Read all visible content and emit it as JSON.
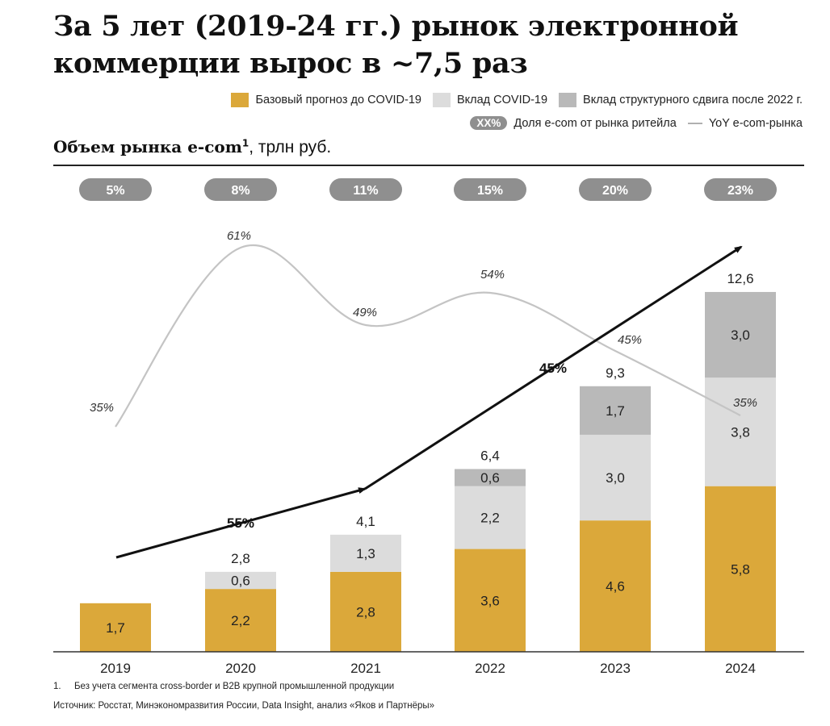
{
  "title": "За 5 лет (2019-24 гг.) рынок электронной коммерции вырос в ~7,5 раз",
  "subtitle": {
    "bold": "Объем рынка e-com",
    "sup": "1",
    "unit": ", трлн руб."
  },
  "legend": {
    "base": "Базовый прогноз до COVID-19",
    "covid": "Вклад COVID-19",
    "shift": "Вклад структурного сдвига после 2022 г.",
    "pill_sample": "XX%",
    "share": "Доля e-com от рынка ритейла",
    "yoy": "YoY e-com-рынка"
  },
  "colors": {
    "base": "#dba83a",
    "covid": "#dcdcdc",
    "shift": "#b9b9b9",
    "pill": "#8f8f8f",
    "yoy_line": "#c4c4c4",
    "trend": "#111111"
  },
  "chart_data": {
    "type": "bar",
    "stacked": true,
    "categories": [
      "2019",
      "2020",
      "2021",
      "2022",
      "2023",
      "2024"
    ],
    "series": [
      {
        "name": "Базовый прогноз до COVID-19",
        "values": [
          1.7,
          2.2,
          2.8,
          3.6,
          4.6,
          5.8
        ],
        "labels": [
          "1,7",
          "2,2",
          "2,8",
          "3,6",
          "4,6",
          "5,8"
        ]
      },
      {
        "name": "Вклад COVID-19",
        "values": [
          0,
          0.6,
          1.3,
          2.2,
          3.0,
          3.8
        ],
        "labels": [
          "",
          "0,6",
          "1,3",
          "2,2",
          "3,0",
          "3,8"
        ]
      },
      {
        "name": "Вклад структурного сдвига после 2022 г.",
        "values": [
          0,
          0,
          0,
          0.6,
          1.7,
          3.0
        ],
        "labels": [
          "",
          "",
          "",
          "0,6",
          "1,7",
          "3,0"
        ]
      }
    ],
    "totals": [
      "",
      "2,8",
      "4,1",
      "6,4",
      "9,3",
      "12,6"
    ],
    "share_of_retail": [
      "5%",
      "8%",
      "11%",
      "15%",
      "20%",
      "23%"
    ],
    "yoy_growth": {
      "labels": [
        "2019",
        "2020",
        "2021",
        "2022",
        "2023",
        "2024"
      ],
      "values": [
        35,
        61,
        49,
        54,
        45,
        35
      ],
      "text": [
        "35%",
        "61%",
        "49%",
        "54%",
        "45%",
        "35%"
      ]
    },
    "cagr_arrows": [
      {
        "from": "2019",
        "to": "2021",
        "label": "55%"
      },
      {
        "from": "2021",
        "to": "2024",
        "label": "45%"
      }
    ]
  },
  "footnotes": {
    "note_num": "1.",
    "note_text": "Без учета сегмента cross-border и B2B крупной промышленной продукции",
    "source": "Источник: Росстат, Минэкономразвития России, Data Insight, анализ «Яков и Партнёры»"
  }
}
